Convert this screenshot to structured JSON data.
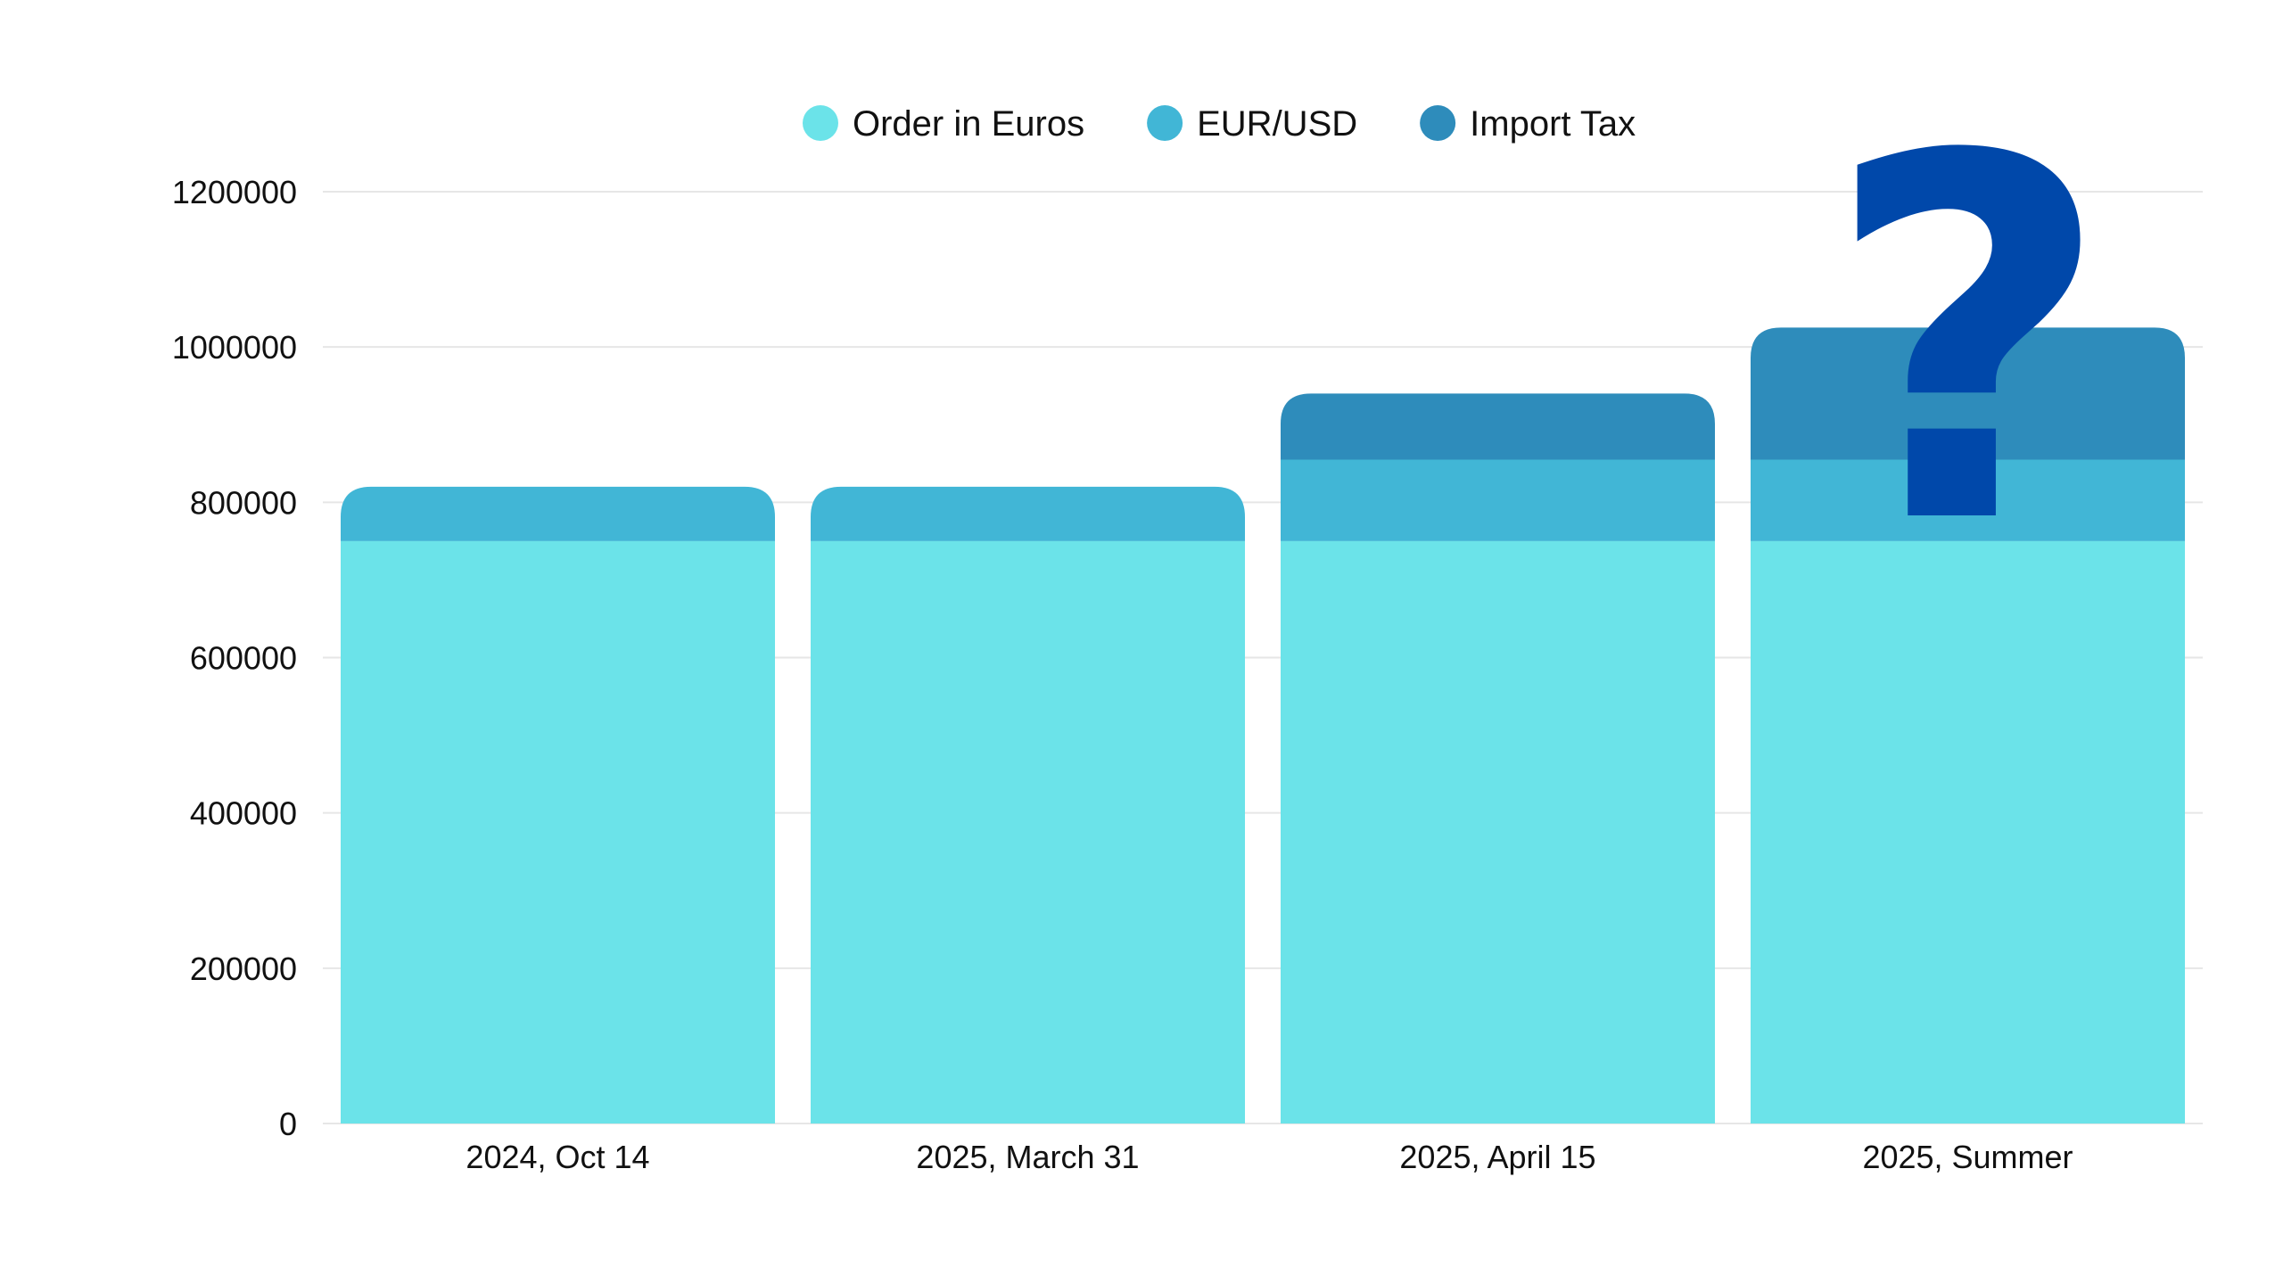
{
  "chart_data": {
    "type": "bar",
    "stacked": true,
    "categories": [
      "2024, Oct 14",
      "2025, March 31",
      "2025, April 15",
      "2025, Summer"
    ],
    "series": [
      {
        "name": "Order in Euros",
        "values": [
          750000,
          750000,
          750000,
          750000
        ],
        "color": "#6BE3E9"
      },
      {
        "name": "EUR/USD",
        "values": [
          70000,
          70000,
          105000,
          105000
        ],
        "color": "#41B6D6"
      },
      {
        "name": "Import Tax",
        "values": [
          0,
          0,
          85000,
          170000
        ],
        "color": "#2E8CBB"
      }
    ],
    "ylim": [
      0,
      1200000
    ],
    "yticks": [
      "0",
      "200000",
      "400000",
      "600000",
      "800000",
      "1000000",
      "1200000"
    ],
    "grid": true,
    "legend_position": "top",
    "annotation": {
      "text": "?",
      "category": "2025, Summer",
      "color": "#0048AA"
    }
  }
}
